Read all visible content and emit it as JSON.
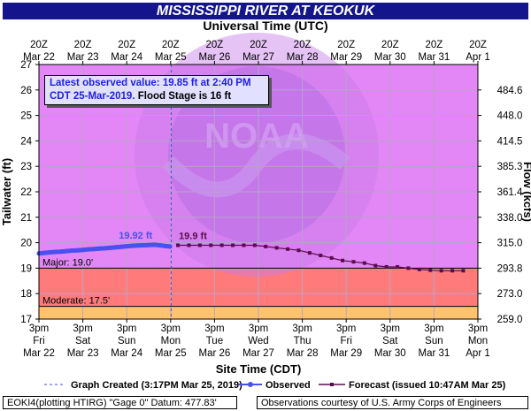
{
  "title": "MISSISSIPPI RIVER AT KEOKUK",
  "top_axis_title": "Universal Time (UTC)",
  "bottom_axis_title": "Site Time (CDT)",
  "info_box": {
    "line1": "Latest observed value: 19.85 ft at 2:40 PM",
    "line2_date": "CDT 25-Mar-2019.",
    "line2_flood": "Flood Stage is 16 ft"
  },
  "footer": {
    "left": "EOKI4(plotting HTIRG) \"Gage 0\" Datum: 477.83'",
    "right": "Observations courtesy of U.S. Army Corps of Engineers"
  },
  "watermark": "NATIONAL OCEANIC AND ATMOSPHERIC ADMINISTRATION U.S. DEPARTMENT OF COMMERCE NOAA",
  "colors": {
    "title_bg": "#14148c",
    "plot_bg": "#e287f5",
    "major_zone": "#ff7b7b",
    "moderate_zone": "#ffc36e",
    "observed": "#4850f0",
    "forecast": "#5c0c4e",
    "grid": "#b6a4c8"
  },
  "chart_data": {
    "type": "line",
    "ylabel_left": "Tailwater (ft)",
    "ylabel_right": "Flow (kcfs)",
    "y_range_left": [
      17,
      27
    ],
    "y_ticks_left": [
      17,
      18,
      19,
      20,
      21,
      22,
      23,
      24,
      25,
      26,
      27
    ],
    "y_ticks_right": [
      {
        "stage": 17,
        "label": "259.0"
      },
      {
        "stage": 18,
        "label": "273.0"
      },
      {
        "stage": 19,
        "label": "293.8"
      },
      {
        "stage": 20,
        "label": "315.0"
      },
      {
        "stage": 21,
        "label": "338.0"
      },
      {
        "stage": 22,
        "label": "361.4"
      },
      {
        "stage": 23,
        "label": "385.3"
      },
      {
        "stage": 24,
        "label": "414.5"
      },
      {
        "stage": 25,
        "label": "448.0"
      },
      {
        "stage": 26,
        "label": "484.6"
      }
    ],
    "x_range": [
      "2019-03-22 15:00 CDT",
      "2019-04-01 15:00 CDT"
    ],
    "x_ticks_bottom": [
      {
        "line1": "3pm",
        "line2": "Fri",
        "line3": "Mar 22"
      },
      {
        "line1": "3pm",
        "line2": "Sat",
        "line3": "Mar 23"
      },
      {
        "line1": "3pm",
        "line2": "Sun",
        "line3": "Mar 24"
      },
      {
        "line1": "3pm",
        "line2": "Mon",
        "line3": "Mar 25"
      },
      {
        "line1": "3pm",
        "line2": "Tue",
        "line3": "Mar 26"
      },
      {
        "line1": "3pm",
        "line2": "Wed",
        "line3": "Mar 27"
      },
      {
        "line1": "3pm",
        "line2": "Thu",
        "line3": "Mar 28"
      },
      {
        "line1": "3pm",
        "line2": "Fri",
        "line3": "Mar 29"
      },
      {
        "line1": "3pm",
        "line2": "Sat",
        "line3": "Mar 30"
      },
      {
        "line1": "3pm",
        "line2": "Sun",
        "line3": "Mar 31"
      },
      {
        "line1": "3pm",
        "line2": "Mon",
        "line3": "Apr 1"
      }
    ],
    "x_ticks_top": [
      {
        "line1": "20Z",
        "line2": "Mar 22"
      },
      {
        "line1": "20Z",
        "line2": "Mar 23"
      },
      {
        "line1": "20Z",
        "line2": "Mar 24"
      },
      {
        "line1": "20Z",
        "line2": "Mar 25"
      },
      {
        "line1": "20Z",
        "line2": "Mar 26"
      },
      {
        "line1": "20Z",
        "line2": "Mar 27"
      },
      {
        "line1": "20Z",
        "line2": "Mar 28"
      },
      {
        "line1": "20Z",
        "line2": "Mar 29"
      },
      {
        "line1": "20Z",
        "line2": "Mar 30"
      },
      {
        "line1": "20Z",
        "line2": "Mar 31"
      },
      {
        "line1": "20Z",
        "line2": "Apr  1"
      }
    ],
    "flood_categories": [
      {
        "name": "Major",
        "stage": 19.0,
        "label": "Major: 19.0'"
      },
      {
        "name": "Moderate",
        "stage": 17.5,
        "label": "Moderate: 17.5'"
      }
    ],
    "grid": true,
    "graph_created_label": "Graph Created (3:17PM Mar 25, 2019)",
    "graph_created_time": "2019-03-25 15:17 CDT",
    "legend": {
      "placement": "bottom",
      "graph_created": "Graph Created (3:17PM Mar 25, 2019)",
      "observed": "Observed",
      "forecast": "Forecast (issued 10:47AM Mar 25)"
    },
    "series": [
      {
        "name": "Observed",
        "points": [
          [
            "2019-03-22 15:00",
            19.58
          ],
          [
            "2019-03-22 18:00",
            19.6
          ],
          [
            "2019-03-22 21:00",
            19.62
          ],
          [
            "2019-03-23 00:00",
            19.64
          ],
          [
            "2019-03-23 03:00",
            19.65
          ],
          [
            "2019-03-23 06:00",
            19.67
          ],
          [
            "2019-03-23 09:00",
            19.69
          ],
          [
            "2019-03-23 12:00",
            19.7
          ],
          [
            "2019-03-23 15:00",
            19.72
          ],
          [
            "2019-03-23 18:00",
            19.74
          ],
          [
            "2019-03-23 21:00",
            19.75
          ],
          [
            "2019-03-24 00:00",
            19.77
          ],
          [
            "2019-03-24 03:00",
            19.78
          ],
          [
            "2019-03-24 06:00",
            19.8
          ],
          [
            "2019-03-24 09:00",
            19.82
          ],
          [
            "2019-03-24 12:00",
            19.84
          ],
          [
            "2019-03-24 15:00",
            19.86
          ],
          [
            "2019-03-24 18:00",
            19.88
          ],
          [
            "2019-03-24 21:00",
            19.89
          ],
          [
            "2019-03-25 00:00",
            19.9
          ],
          [
            "2019-03-25 03:00",
            19.91
          ],
          [
            "2019-03-25 06:00",
            19.92
          ],
          [
            "2019-03-25 09:00",
            19.9
          ],
          [
            "2019-03-25 12:00",
            19.87
          ],
          [
            "2019-03-25 14:40",
            19.85
          ]
        ],
        "label": "19.92 ft"
      },
      {
        "name": "Forecast",
        "points": [
          [
            "2019-03-25 19:00",
            19.9
          ],
          [
            "2019-03-26 01:00",
            19.9
          ],
          [
            "2019-03-26 07:00",
            19.9
          ],
          [
            "2019-03-26 13:00",
            19.9
          ],
          [
            "2019-03-26 19:00",
            19.9
          ],
          [
            "2019-03-27 01:00",
            19.9
          ],
          [
            "2019-03-27 07:00",
            19.9
          ],
          [
            "2019-03-27 13:00",
            19.9
          ],
          [
            "2019-03-27 19:00",
            19.85
          ],
          [
            "2019-03-28 01:00",
            19.8
          ],
          [
            "2019-03-28 07:00",
            19.75
          ],
          [
            "2019-03-28 13:00",
            19.7
          ],
          [
            "2019-03-28 19:00",
            19.6
          ],
          [
            "2019-03-29 01:00",
            19.5
          ],
          [
            "2019-03-29 07:00",
            19.4
          ],
          [
            "2019-03-29 13:00",
            19.3
          ],
          [
            "2019-03-29 19:00",
            19.25
          ],
          [
            "2019-03-30 01:00",
            19.2
          ],
          [
            "2019-03-30 07:00",
            19.1
          ],
          [
            "2019-03-30 13:00",
            19.05
          ],
          [
            "2019-03-30 19:00",
            19.05
          ],
          [
            "2019-03-31 01:00",
            19.0
          ],
          [
            "2019-03-31 07:00",
            18.95
          ],
          [
            "2019-03-31 13:00",
            18.92
          ],
          [
            "2019-03-31 19:00",
            18.9
          ],
          [
            "2019-04-01 01:00",
            18.9
          ],
          [
            "2019-04-01 07:00",
            18.9
          ]
        ],
        "label": "19.9 ft"
      }
    ]
  }
}
